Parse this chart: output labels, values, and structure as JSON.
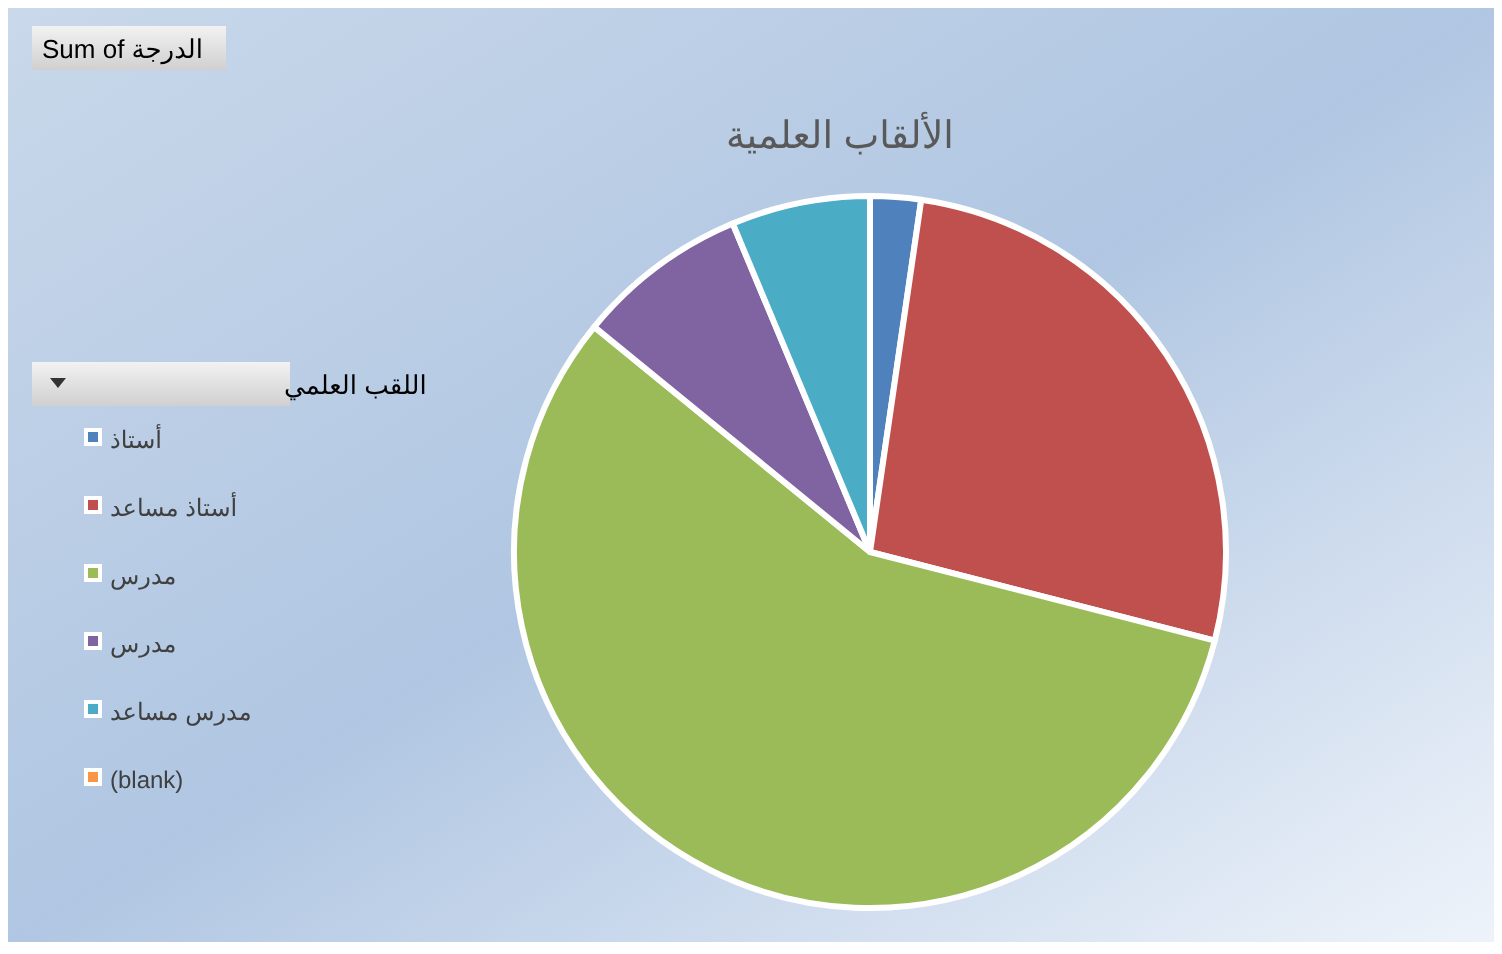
{
  "chart_data": {
    "type": "pie",
    "title": "الألقاب العلمية",
    "legend_title": "اللقب العلمي",
    "annotations": [
      "Sum of  الدرجة"
    ],
    "categories": [
      "أستاذ",
      "أستاذ مساعد",
      "مدرس",
      "مدرس ",
      "مدرس مساعد",
      "(blank)"
    ],
    "values": [
      2.3,
      26.7,
      56.9,
      7.8,
      6.3,
      0
    ],
    "colors": [
      "#4f81bd",
      "#c0504d",
      "#9bbb59",
      "#8064a2",
      "#4bacc6",
      "#f79646"
    ],
    "legend": "left"
  }
}
